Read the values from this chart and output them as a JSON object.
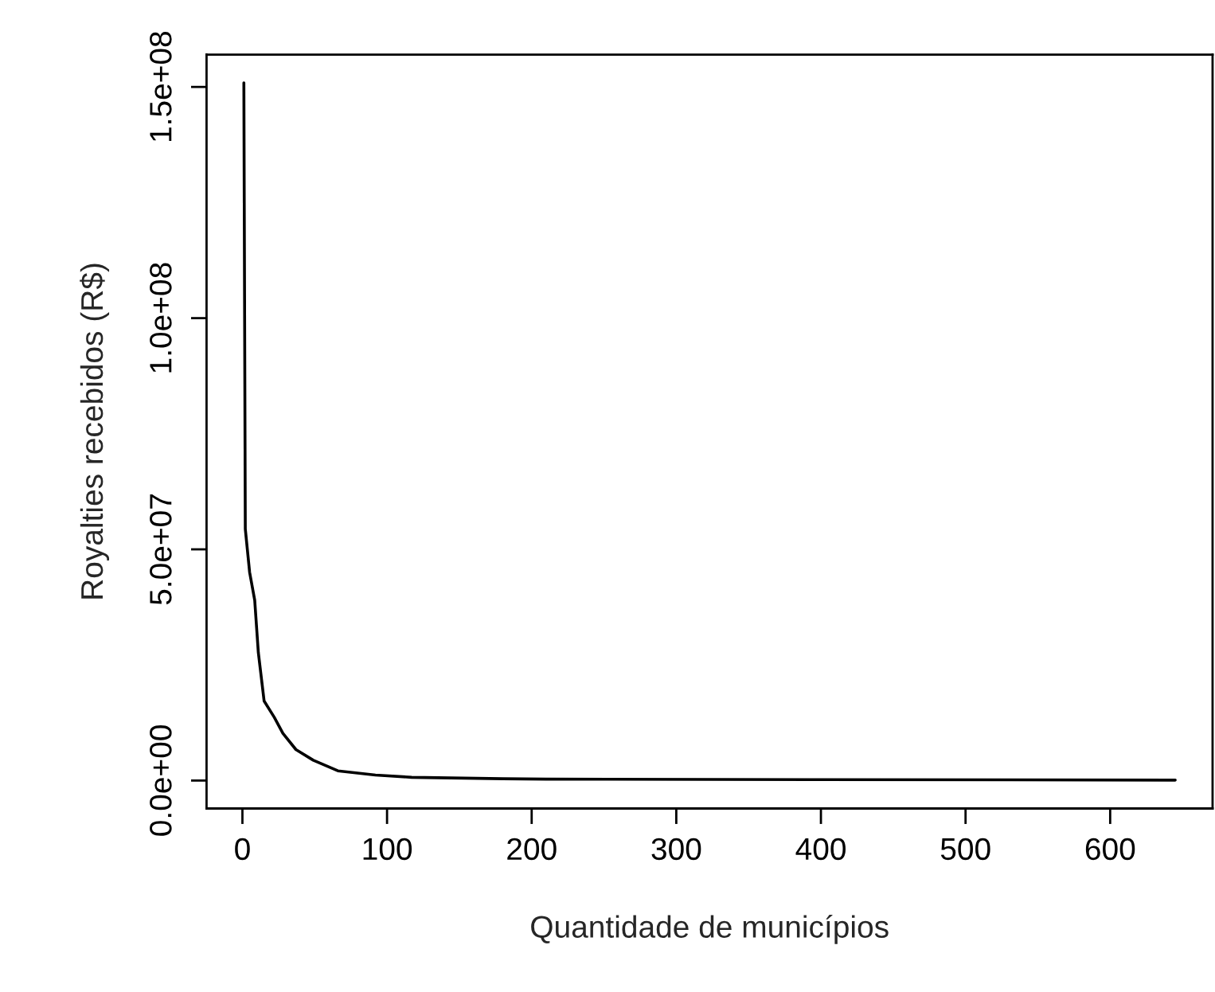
{
  "chart_data": {
    "type": "line",
    "xlabel": "Quantidade de municípios",
    "ylabel": "Royalties recebidos (R$)",
    "x": [
      1,
      2,
      5,
      8.5,
      11,
      15,
      22,
      28,
      37,
      49,
      66,
      92,
      117,
      180,
      210,
      400,
      645
    ],
    "series": [
      {
        "color": "#000000",
        "values": [
          150900000,
          54400000,
          45000000,
          39000000,
          27700000,
          17200000,
          13700000,
          10200000,
          6700000,
          4400000,
          2100000,
          1200000,
          700000,
          400000,
          300000,
          200000,
          100000
        ]
      }
    ],
    "xlim": [
      -24.8,
      670.8
    ],
    "ylim": [
      -6040000,
      157000000
    ],
    "xticks": [
      0,
      100,
      200,
      300,
      400,
      500,
      600
    ],
    "yticks": [
      {
        "value": 0,
        "label": "0.0e+00"
      },
      {
        "value": 50000000,
        "label": "5.0e+07"
      },
      {
        "value": 100000000,
        "label": "1.0e+08"
      },
      {
        "value": 150000000,
        "label": "1.5e+08"
      }
    ],
    "grid": false
  }
}
